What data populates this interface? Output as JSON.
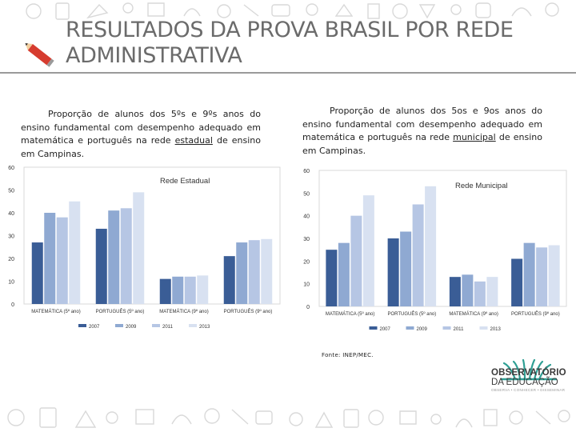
{
  "title": "RESULTADOS DA PROVA BRASIL POR REDE ADMINISTRATIVA",
  "captions": {
    "left": {
      "before": "Proporção de alunos dos 5ºs e 9ºs anos do ensino fundamental com desempenho adequado em matemática e português na rede ",
      "underlined": "estadual",
      "after": " de ensino em Campinas."
    },
    "right": {
      "before": "Proporção de alunos dos 5os e 9os anos do ensino fundamental com desempenho adequado em matemática e português na rede ",
      "underlined": "municipal",
      "after": " de ensino em Campinas."
    }
  },
  "source": "Fonte: INEP/MEC.",
  "logo": {
    "line1": "OBSERVATÓRIO",
    "line2": "DA EDUCAÇÃO",
    "tagline": "OBSERVA • CONHECER • DISSEMINAR"
  },
  "colors": {
    "series": [
      "#3a5d96",
      "#8fa9d2",
      "#b6c6e4",
      "#d8e1f1"
    ],
    "axis_text": "#333333",
    "grid": "#d9d9d9",
    "teal": "#2f9f94"
  },
  "chart_data": [
    {
      "type": "bar",
      "title": "Rede Estadual",
      "categories": [
        "MATEMÁTICA (5º ano)",
        "PORTUGUÊS (5º ano)",
        "MATEMÁTICA (9º ano)",
        "PORTUGUÊS (9º ano)"
      ],
      "series": [
        {
          "name": "2007",
          "values": [
            27,
            33,
            11,
            21
          ]
        },
        {
          "name": "2009",
          "values": [
            40,
            41,
            12,
            27
          ]
        },
        {
          "name": "2011",
          "values": [
            38,
            42,
            12,
            28
          ]
        },
        {
          "name": "2013",
          "values": [
            45,
            49,
            12.5,
            28.5
          ]
        }
      ],
      "yticks": [
        0,
        10,
        20,
        30,
        40,
        50,
        60
      ],
      "ylim": [
        0,
        60
      ],
      "legend": "bottom"
    },
    {
      "type": "bar",
      "title": "Rede Municipal",
      "categories": [
        "MATEMÁTICA (5º ano)",
        "PORTUGUÊS (5º ano)",
        "MATEMÁTICA (9º ano)",
        "PORTUGUÊS (9º ano)"
      ],
      "series": [
        {
          "name": "2007",
          "values": [
            25,
            30,
            13,
            21
          ]
        },
        {
          "name": "2009",
          "values": [
            28,
            33,
            14,
            28
          ]
        },
        {
          "name": "2011",
          "values": [
            40,
            45,
            11,
            26
          ]
        },
        {
          "name": "2013",
          "values": [
            49,
            53,
            13,
            27
          ]
        }
      ],
      "yticks": [
        0,
        10,
        20,
        30,
        40,
        50,
        60
      ],
      "ylim": [
        0,
        60
      ],
      "legend": "bottom"
    }
  ]
}
